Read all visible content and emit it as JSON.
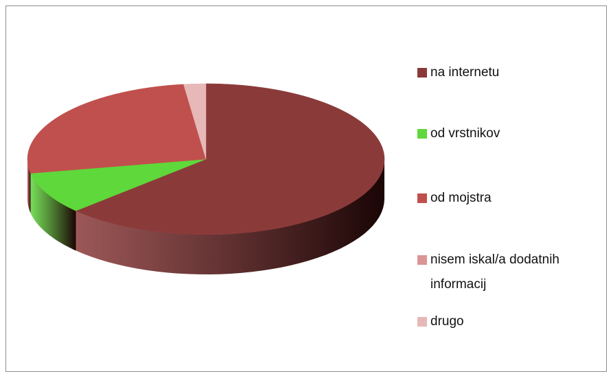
{
  "chart_data": {
    "type": "pie3d",
    "categories": [
      "na internetu",
      "od vrstnikov",
      "od mojstra",
      "nisem iskal/a dodatnih informacij",
      "drugo"
    ],
    "values": [
      63,
      9,
      26,
      0,
      2
    ],
    "colors": [
      "#8b3a3a",
      "#5ed83a",
      "#c0504d",
      "#d99694",
      "#e6b9b8"
    ],
    "legend": "right"
  }
}
